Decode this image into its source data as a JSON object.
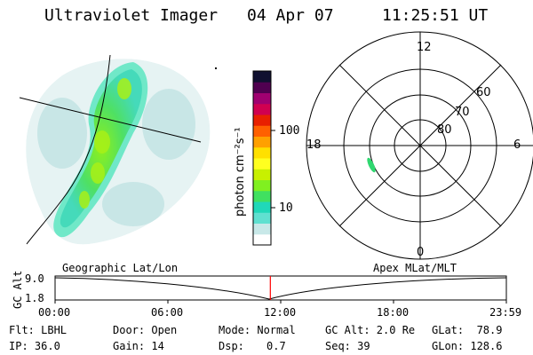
{
  "header": {
    "instrument": "Ultraviolet Imager",
    "date": "04 Apr 07",
    "time": "11:25:51 UT"
  },
  "colorbar": {
    "unit_label": "photon cm⁻²s⁻¹",
    "ticks": [
      "100",
      "10"
    ],
    "scale": "log",
    "colors": [
      "#ffffff",
      "#c8e8e8",
      "#60e0d0",
      "#20d8b8",
      "#40e060",
      "#80f020",
      "#c8f000",
      "#ffff20",
      "#ffe000",
      "#ffa000",
      "#ff6000",
      "#e82000",
      "#d00050",
      "#a00070",
      "#500050",
      "#101030"
    ]
  },
  "polar": {
    "mlt_labels": [
      "12",
      "18",
      "6",
      "0"
    ],
    "lat_labels": [
      "60",
      "70",
      "80"
    ]
  },
  "timeline": {
    "left_title": "Geographic Lat/Lon",
    "right_title": "Apex MLat/MLT",
    "axis_label": "GC Alt",
    "y_ticks": [
      "9.0",
      "1.8"
    ],
    "x_ticks": [
      "00:00",
      "06:00",
      "12:00",
      "18:00",
      "23:59"
    ],
    "marker_time_fraction": 0.477,
    "marker_color": "#ff0000"
  },
  "status": {
    "flt": "Flt: LBHL",
    "ip": "IP: 36.0",
    "door": "Door: Open",
    "gain": "Gain: 14",
    "mode": "Mode: Normal",
    "dsp_label": "Dsp:",
    "dsp_value": "0.7",
    "gc_alt": "GC Alt: 2.0 Re",
    "seq": "Seq: 39",
    "glat": "GLat:  78.9",
    "glon": "GLon: 128.6"
  }
}
